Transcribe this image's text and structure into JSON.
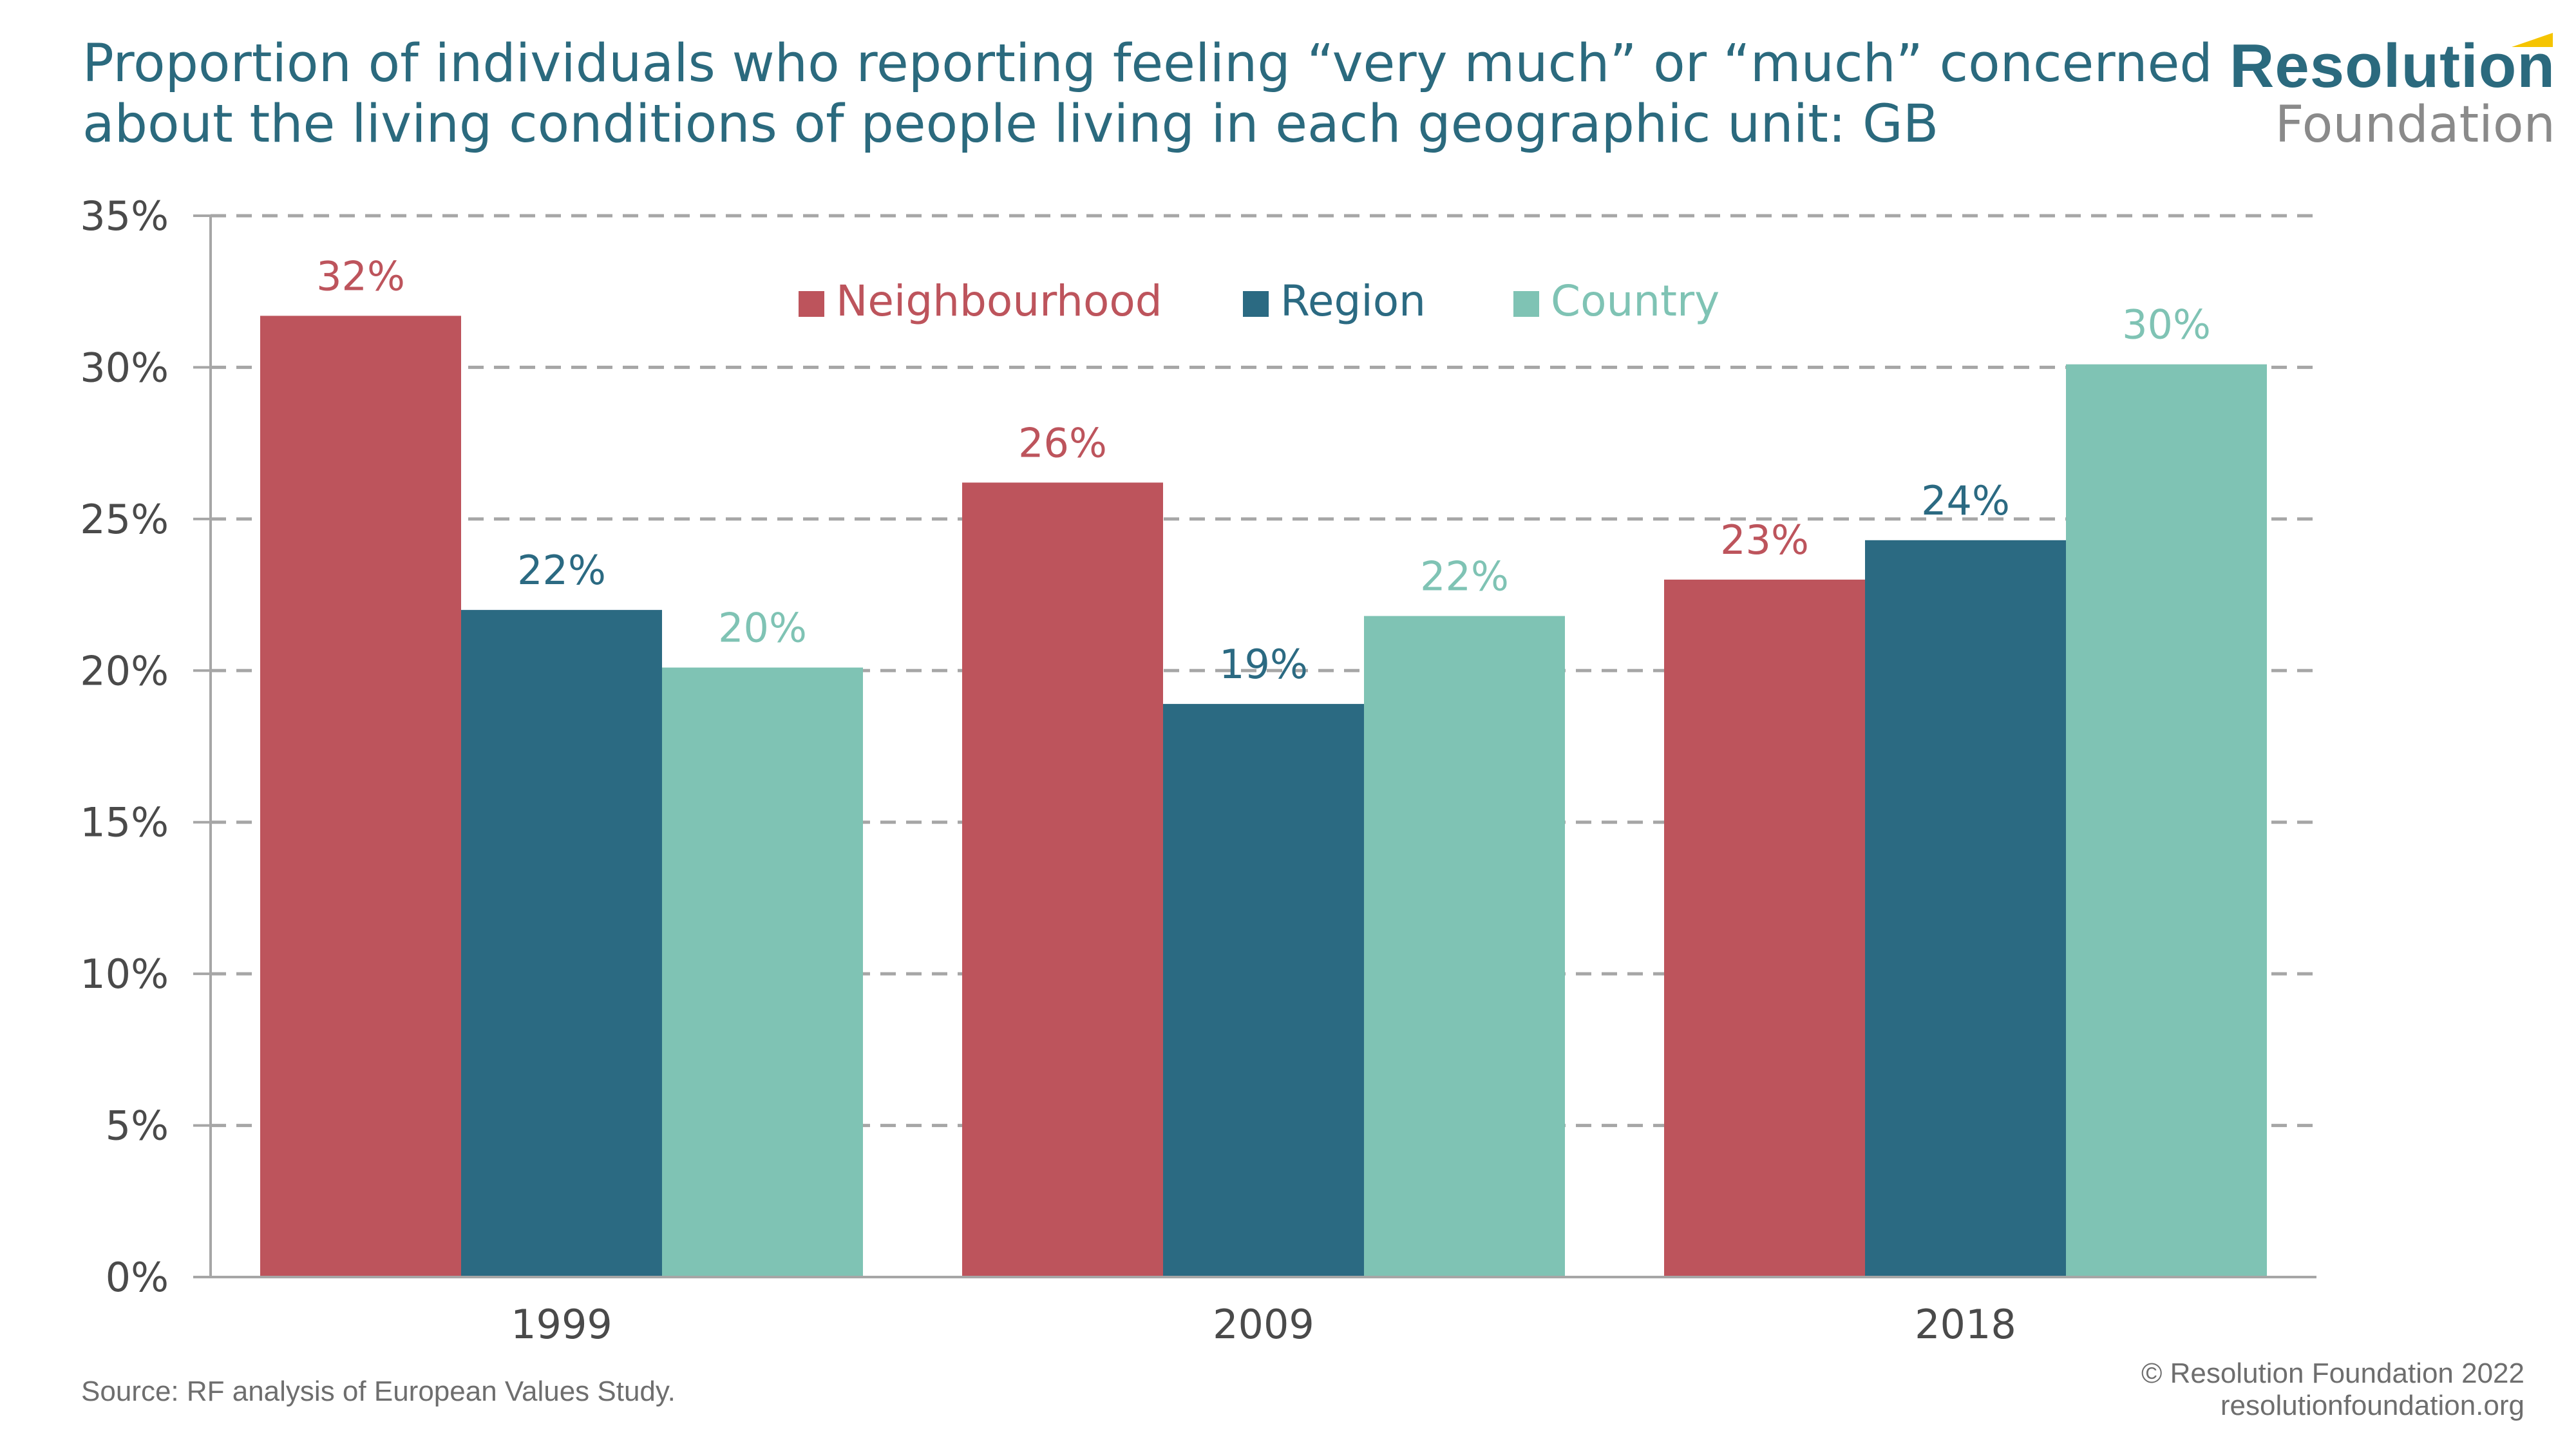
{
  "header": {
    "title": "Proportion of individuals who reporting feeling “very much” or “much” concerned about the living conditions of people living in each geographic unit: GB"
  },
  "logo": {
    "line1": "Resolution",
    "line2": "Foundation"
  },
  "footer": {
    "source": "Source: RF analysis of European Values Study.",
    "copyright": "© Resolution Foundation 2022",
    "url": "resolutionfoundation.org"
  },
  "colors": {
    "neighbourhood": "#bd545c",
    "region": "#2b6a82",
    "country": "#7fc3b4",
    "title": "#2b6a7e"
  },
  "chart_data": {
    "type": "bar",
    "title": "Proportion of individuals who reporting feeling “very much” or “much” concerned about the living conditions of people living in each geographic unit: GB",
    "categories": [
      "1999",
      "2009",
      "2018"
    ],
    "series": [
      {
        "name": "Neighbourhood",
        "values": [
          31.7,
          26.2,
          23.0
        ],
        "labels": [
          "32%",
          "26%",
          "23%"
        ],
        "color": "#bd545c"
      },
      {
        "name": "Region",
        "values": [
          22.0,
          18.9,
          24.3
        ],
        "labels": [
          "22%",
          "19%",
          "24%"
        ],
        "color": "#2b6a82"
      },
      {
        "name": "Country",
        "values": [
          20.1,
          21.8,
          30.1
        ],
        "labels": [
          "20%",
          "22%",
          "30%"
        ],
        "color": "#7fc3b4"
      }
    ],
    "ylim": [
      0,
      35
    ],
    "yticks": [
      0,
      5,
      10,
      15,
      20,
      25,
      30,
      35
    ],
    "ytick_labels": [
      "0%",
      "5%",
      "10%",
      "15%",
      "20%",
      "25%",
      "30%",
      "35%"
    ],
    "xlabel": "",
    "ylabel": "",
    "grid": true,
    "legend": "top-center"
  }
}
